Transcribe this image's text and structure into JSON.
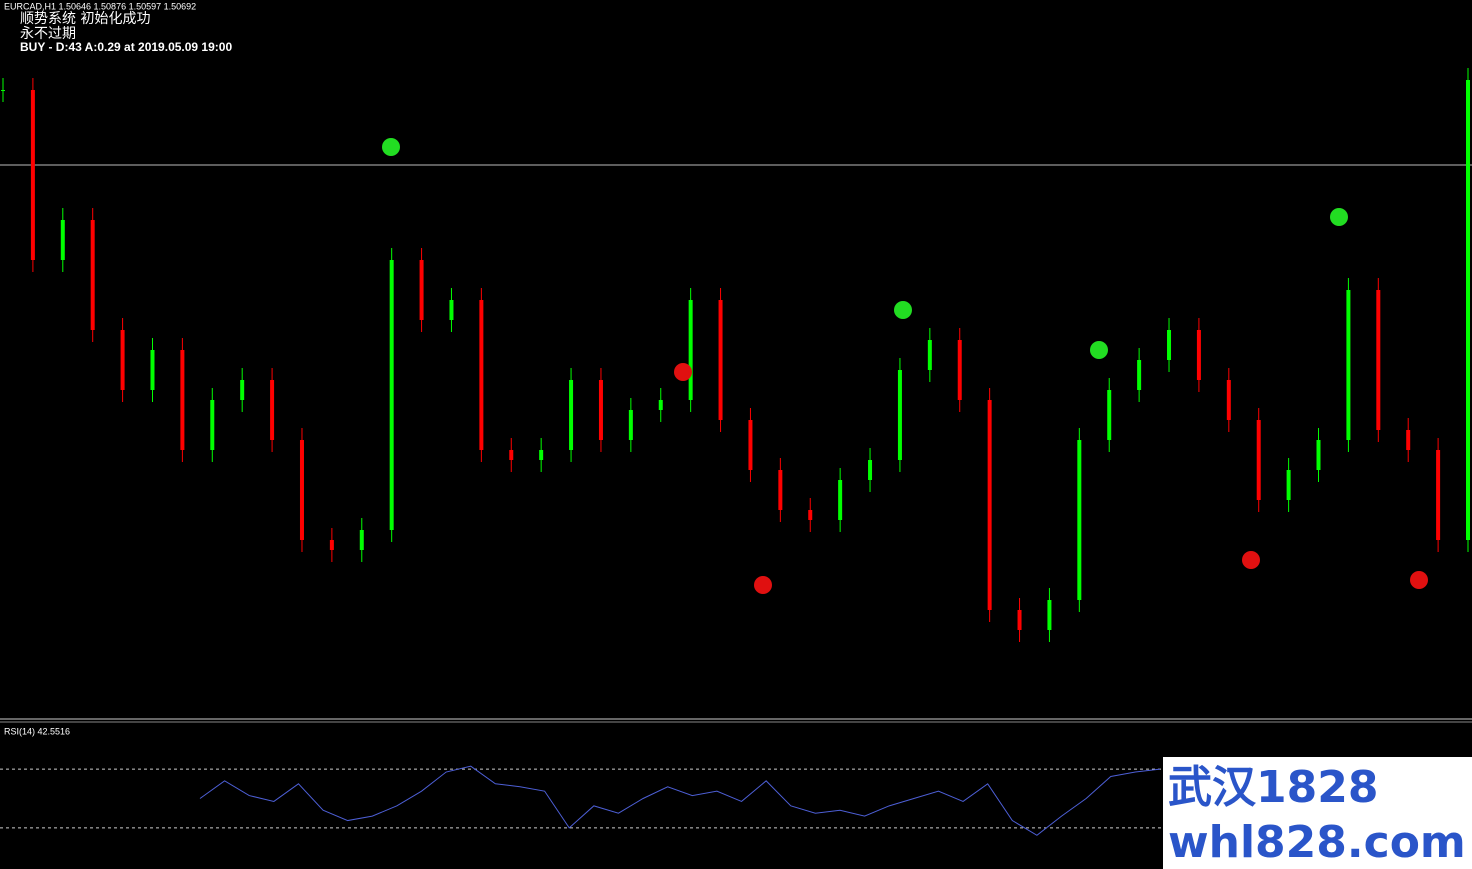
{
  "header": {
    "symbol_line": "EURCAD,H1  1.50646 1.50876 1.50597 1.50692",
    "system_status": "顺势系统 初始化成功",
    "license": "永不过期",
    "signal": "BUY - D:43 A:0.29 at 2019.05.09 19:00"
  },
  "watermark": {
    "name": "武汉1828",
    "site": "whl828.com"
  },
  "chart_data": [
    {
      "type": "candlestick",
      "up_color": "#00ff00",
      "down_color": "#ff0000",
      "ylim": [
        1.498,
        1.5112
      ],
      "level": 1.5091,
      "values": [
        1.5106,
        1.5072,
        1.508,
        1.5058,
        1.5046,
        1.5054,
        1.5034,
        1.5044,
        1.5048,
        1.5036,
        1.5016,
        1.5014,
        1.5018,
        1.5072,
        1.506,
        1.5064,
        1.5034,
        1.5032,
        1.5034,
        1.5048,
        1.5036,
        1.5042,
        1.5044,
        1.5064,
        1.504,
        1.503,
        1.5022,
        1.502,
        1.5028,
        1.5032,
        1.505,
        1.5056,
        1.5044,
        1.5002,
        1.4998,
        1.5004,
        1.5036,
        1.5046,
        1.5052,
        1.5058,
        1.5048,
        1.504,
        1.5024,
        1.503,
        1.5036,
        1.5066,
        1.5038,
        1.5034,
        1.5016,
        1.5108
      ]
    },
    {
      "type": "line",
      "title": "RSI(14) 42.5516",
      "color": "#4d5fd6",
      "ylim": [
        0,
        100
      ],
      "levels": [
        70,
        30
      ],
      "values": [
        50,
        62,
        52,
        48,
        60,
        42,
        35,
        38,
        45,
        55,
        68,
        72,
        60,
        58,
        55,
        30,
        45,
        40,
        50,
        58,
        52,
        55,
        48,
        62,
        45,
        40,
        42,
        38,
        45,
        50,
        55,
        48,
        60,
        35,
        25,
        38,
        50,
        65,
        68,
        70
      ]
    }
  ]
}
